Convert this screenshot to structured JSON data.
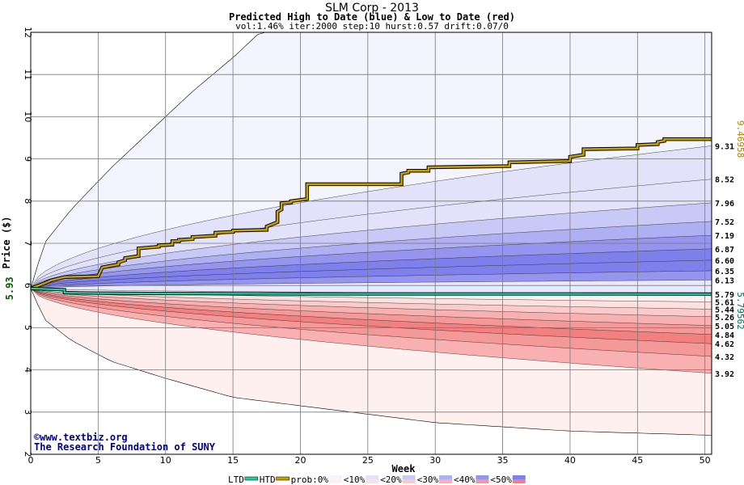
{
  "header": {
    "title": "SLM Corp - 2013",
    "subtitle": "Predicted High to Date (blue) &  Low to Date (red)",
    "params": "vol:1.46% iter:2000 step:10 hurst:0.57 drift:0.07/0"
  },
  "credits": {
    "line1": "©www.textbiz.org",
    "line2": "The Research Foundation of SUNY"
  },
  "colors": {
    "gold": "#c8a000",
    "ltd": "#20d0a0",
    "blue_bands": [
      "#f4f4ff",
      "#e2e2fb",
      "#c9c9f7",
      "#afaff3",
      "#9595ef",
      "#8080ec"
    ],
    "red_bands": [
      "#fff0f0",
      "#fde0e0",
      "#fbcaca",
      "#f8b0b0",
      "#f59898",
      "#f38080"
    ]
  },
  "chart_data": {
    "type": "area",
    "xlabel": "Week",
    "ylabel": "Price ($)",
    "xlim": [
      0,
      50.5
    ],
    "ylim": [
      2,
      12
    ],
    "x_ticks": [
      0,
      5,
      10,
      15,
      20,
      25,
      30,
      35,
      40,
      45,
      50
    ],
    "y_ticks": [
      2,
      3,
      4,
      5,
      6,
      7,
      8,
      9,
      10,
      11,
      12
    ],
    "start_price": 5.93,
    "start_label": "5.93",
    "high_to_date_label": "9.46958",
    "low_to_date_label": "5.79562",
    "outer_high": {
      "x": [
        0,
        1,
        3,
        6,
        9,
        12,
        15,
        17,
        50.5
      ],
      "y": [
        5.93,
        7.0,
        7.8,
        8.8,
        9.7,
        10.6,
        11.4,
        12.0,
        12.0
      ]
    },
    "outer_low": {
      "x": [
        0,
        1,
        3,
        6,
        10,
        15,
        20,
        25,
        30,
        40,
        50.5
      ],
      "y": [
        5.93,
        5.2,
        4.7,
        4.2,
        3.8,
        3.35,
        3.15,
        2.95,
        2.75,
        2.55,
        2.45
      ]
    },
    "end_percentiles_high": [
      9.31,
      8.52,
      7.96,
      7.52,
      7.19,
      6.87,
      6.6,
      6.35,
      6.13
    ],
    "end_percentiles_low": [
      5.79,
      5.61,
      5.44,
      5.26,
      5.05,
      4.84,
      4.62,
      4.32,
      3.92
    ],
    "end_labels": [
      "9.31",
      "8.52",
      "7.96",
      "7.52",
      "7.19",
      "6.87",
      "6.60",
      "6.35",
      "6.13",
      "5.79",
      "5.61",
      "5.44",
      "5.26",
      "5.05",
      "4.84",
      "4.62",
      "4.32",
      "3.92"
    ],
    "high_to_date": {
      "x": [
        0,
        1,
        1.5,
        2.5,
        5,
        5.3,
        6.5,
        6.5,
        7,
        7,
        8,
        8,
        9.5,
        9.5,
        10.5,
        10.5,
        11,
        11,
        12,
        12,
        13.7,
        13.7,
        15,
        15,
        17.5,
        17.5,
        18.3,
        18.3,
        18.6,
        18.6,
        19.3,
        19.3,
        20.5,
        20.5,
        27.5,
        27.5,
        28,
        28,
        29.5,
        29.5,
        35.5,
        35.5,
        40,
        40,
        41,
        41,
        45,
        45,
        46.5,
        46.5,
        47,
        47,
        50.5
      ],
      "y": [
        5.93,
        6.05,
        6.12,
        6.2,
        6.22,
        6.43,
        6.5,
        6.55,
        6.6,
        6.65,
        6.7,
        6.88,
        6.92,
        6.95,
        6.97,
        7.05,
        7.05,
        7.08,
        7.1,
        7.15,
        7.18,
        7.25,
        7.27,
        7.3,
        7.32,
        7.4,
        7.5,
        7.75,
        7.8,
        7.95,
        7.97,
        8.0,
        8.05,
        8.4,
        8.4,
        8.65,
        8.68,
        8.72,
        8.72,
        8.8,
        8.83,
        8.92,
        8.95,
        9.05,
        9.1,
        9.23,
        9.25,
        9.33,
        9.35,
        9.4,
        9.43,
        9.47,
        9.47
      ]
    },
    "low_to_date": {
      "x": [
        0,
        2.5,
        2.5,
        5,
        10,
        20,
        30,
        40,
        50.5
      ],
      "y": [
        5.93,
        5.9,
        5.83,
        5.82,
        5.81,
        5.8,
        5.8,
        5.8,
        5.796
      ]
    }
  },
  "legend": {
    "items": [
      {
        "label": "LTD",
        "swatch": "ltd"
      },
      {
        "label": "HTD",
        "swatch": "htd"
      },
      {
        "label": "prob:0%",
        "swatch": "band0"
      },
      {
        "label": "<10%",
        "swatch": "band1"
      },
      {
        "label": "<20%",
        "swatch": "band2"
      },
      {
        "label": "<30%",
        "swatch": "band3"
      },
      {
        "label": "<40%",
        "swatch": "band4"
      },
      {
        "label": "<50%",
        "swatch": "band5"
      }
    ]
  }
}
